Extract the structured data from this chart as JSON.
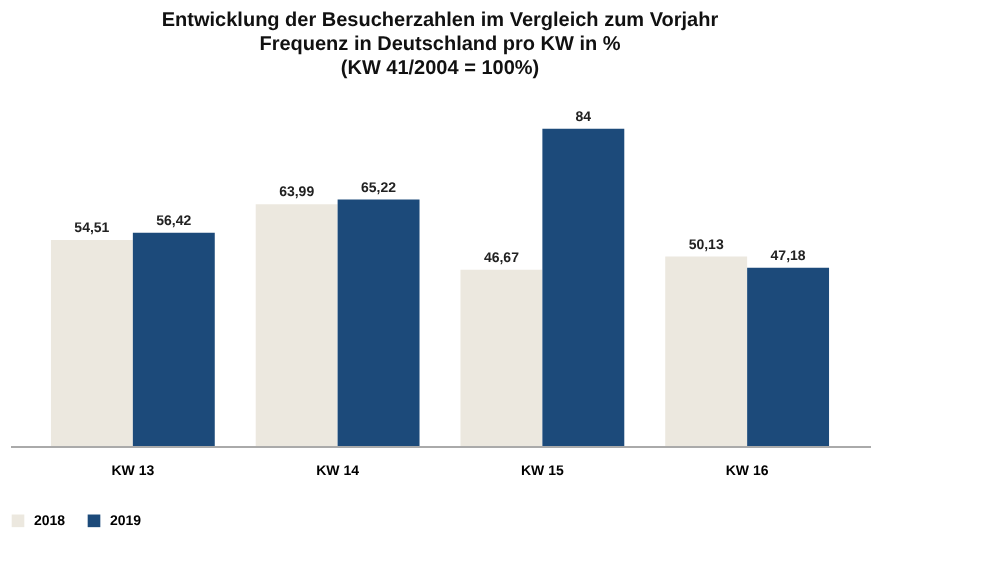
{
  "chart_data": {
    "type": "bar",
    "title": [
      "Entwicklung der Besucherzahlen im Vergleich zum Vorjahr",
      "Frequenz in Deutschland pro KW in %",
      "(KW 41/2004 = 100%)"
    ],
    "categories": [
      "KW 13",
      "KW 14",
      "KW 15",
      "KW 16"
    ],
    "series": [
      {
        "name": "2018",
        "color": "#ece8df",
        "values": [
          54.51,
          63.99,
          46.67,
          50.13
        ],
        "value_labels": [
          "54,51",
          "63,99",
          "46,67",
          "50,13"
        ]
      },
      {
        "name": "2019",
        "color": "#1c4a7a",
        "values": [
          56.42,
          65.22,
          84,
          47.18
        ],
        "value_labels": [
          "56,42",
          "65,22",
          "84",
          "47,18"
        ]
      }
    ],
    "tick_labels": "x",
    "grid": false,
    "legend": "bottom"
  }
}
